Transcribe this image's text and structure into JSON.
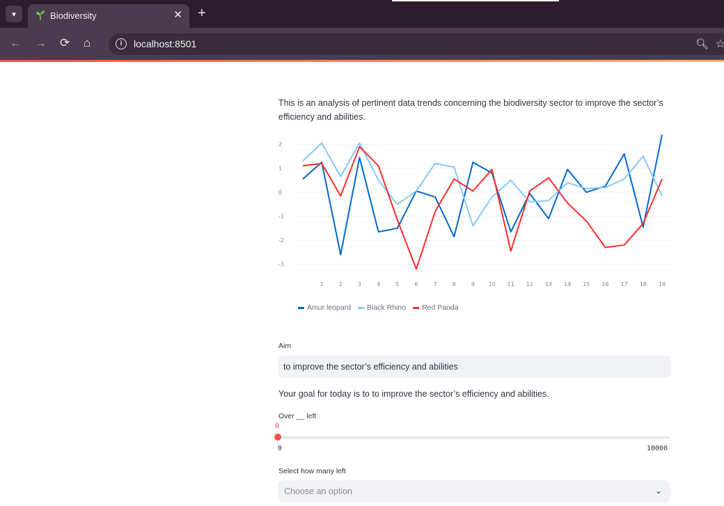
{
  "browser": {
    "tab_title": "Biodiversity",
    "tab_close": "✕",
    "new_tab": "+",
    "url": "localhost:8501"
  },
  "page": {
    "intro": "This is an analysis of pertinent data trends concerning the biodiversity sector to improve the sector’s efficiency and abilities.",
    "aim_label": "Aim",
    "aim_value": "to improve the sector’s efficiency and abilities",
    "goal_text": "Your goal for today is to to improve the sector’s efficiency and abilities.",
    "slider": {
      "label": "Over __ left",
      "value": "0",
      "min": "0",
      "max": "10000",
      "fraction": 0
    },
    "select": {
      "label": "Select how many left",
      "placeholder": "Choose an option"
    }
  },
  "colors": {
    "accent": "#ff4b4b",
    "amur": "#0068c9",
    "rhino": "#83c9ff",
    "panda": "#ff2b2b"
  },
  "chart_data": {
    "type": "line",
    "x": [
      0,
      1,
      2,
      3,
      4,
      5,
      6,
      7,
      8,
      9,
      10,
      11,
      12,
      13,
      14,
      15,
      16,
      17,
      18,
      19
    ],
    "xticks": [
      "1",
      "2",
      "3",
      "4",
      "5",
      "6",
      "7",
      "8",
      "9",
      "10",
      "11",
      "12",
      "13",
      "14",
      "15",
      "16",
      "17",
      "18",
      "19"
    ],
    "yticks": [
      "2",
      "1",
      "0",
      "-1",
      "-2",
      "-3"
    ],
    "ylim": [
      -3.3,
      2.5
    ],
    "grid": true,
    "legend_position": "bottom-left",
    "series": [
      {
        "name": "Amur leopard",
        "color": "#0068c9",
        "values": [
          0.55,
          1.25,
          -2.6,
          1.45,
          -1.65,
          -1.5,
          0.05,
          -0.2,
          -1.85,
          1.25,
          0.8,
          -1.65,
          -0.05,
          -1.1,
          0.95,
          0,
          0.25,
          1.6,
          -1.45,
          2.4
        ]
      },
      {
        "name": "Black Rhino",
        "color": "#83c9ff",
        "values": [
          1.3,
          2.05,
          0.65,
          2.05,
          0.5,
          -0.5,
          0.05,
          1.2,
          1.05,
          -1.4,
          -0.2,
          0.5,
          -0.4,
          -0.35,
          0.4,
          0.15,
          0.2,
          0.55,
          1.5,
          -0.15
        ]
      },
      {
        "name": "Red Panda",
        "color": "#ff2b2b",
        "values": [
          1.1,
          1.2,
          -0.15,
          1.9,
          1.1,
          -1.15,
          -3.2,
          -0.8,
          0.55,
          0.05,
          0.95,
          -2.45,
          0.05,
          0.6,
          -0.45,
          -1.2,
          -2.3,
          -2.2,
          -1.3,
          0.55
        ]
      }
    ]
  }
}
